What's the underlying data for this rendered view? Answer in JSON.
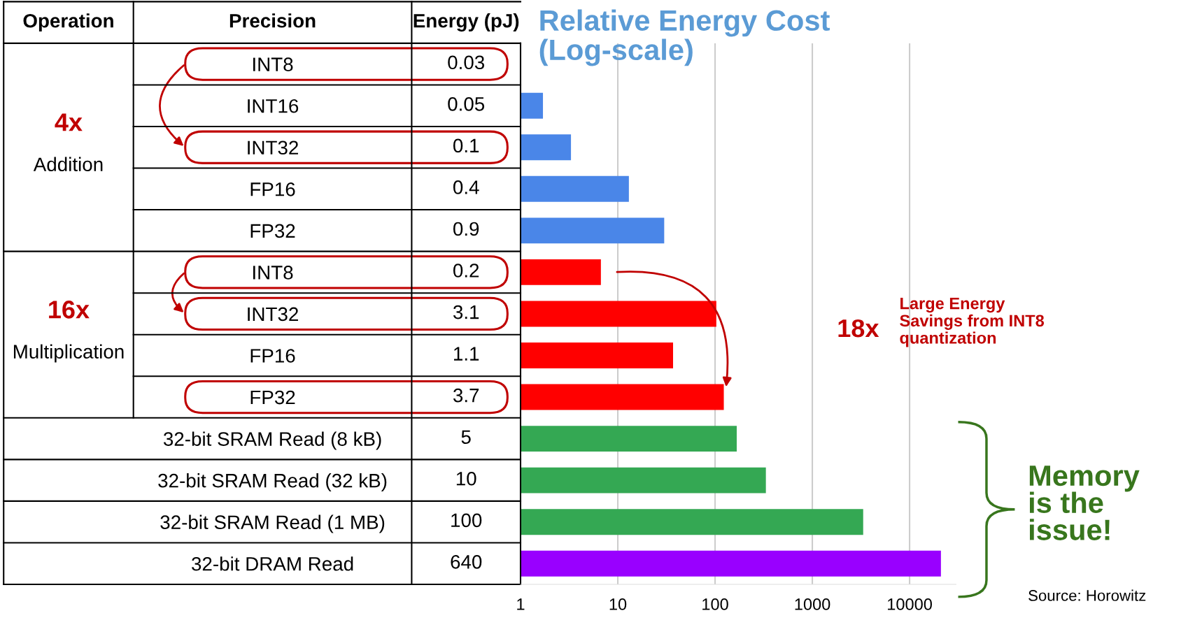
{
  "chart_data": {
    "type": "bar",
    "orientation": "horizontal",
    "log": "x",
    "title": "Relative Energy Cost\n(Log-scale)",
    "categories": [
      "INT8",
      "INT16",
      "INT32",
      "FP16",
      "FP32",
      "INT8",
      "INT32",
      "FP16",
      "FP32",
      "32-bit SRAM Read (8 kB)",
      "32-bit SRAM Read (32 kB)",
      "32-bit SRAM Read (1 MB)",
      "32-bit DRAM Read"
    ],
    "y2_categories": [
      "0.03",
      "0.05",
      "0.1",
      "0.4",
      "0.9",
      "0.2",
      "3.1",
      "1.1",
      "3.7",
      "5",
      "10",
      "100",
      "640"
    ],
    "values": [
      1,
      1.7,
      3.3,
      13,
      30,
      6.7,
      103,
      37,
      123,
      167,
      333,
      3333,
      21000
    ],
    "colors": [
      "#4a86e8",
      "#4a86e8",
      "#4a86e8",
      "#4a86e8",
      "#4a86e8",
      "#ff0000",
      "#ff0000",
      "#ff0000",
      "#ff0000",
      "#34a853",
      "#34a853",
      "#34a853",
      "#9900ff"
    ],
    "xlim": [
      1,
      30000
    ],
    "xticks": [
      1,
      10,
      100,
      1000,
      10000
    ],
    "grid": "x",
    "annotations": [
      "Operation",
      "Precision",
      "Energy (pJ)",
      "Addition",
      "Multiplication",
      "4x",
      "16x",
      "18x",
      "Large Energy\nSavings from INT8\nquantization",
      "Memory\nis the\nissue!",
      "Source: Horowitz"
    ]
  }
}
